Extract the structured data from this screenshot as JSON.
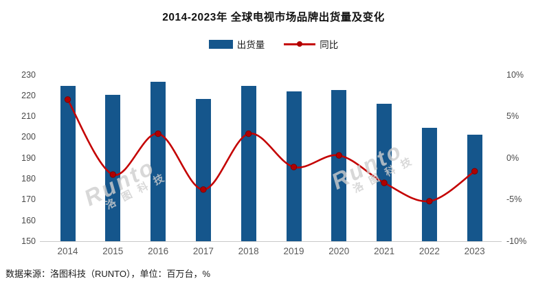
{
  "title": "2014-2023年 全球电视市场品牌出货量及变化",
  "legend": {
    "bar_label": "出货量",
    "line_label": "同比"
  },
  "source_note": "数据来源：洛图科技（RUNTO），单位：百万台，%",
  "watermark": {
    "brand": "Runto",
    "cn_chars": "洛图科技"
  },
  "colors": {
    "bar": "#15568C",
    "line": "#C40000",
    "marker_fill": "#B00000",
    "marker_stroke": "#7E0000",
    "axis_label": "#4A4A4A",
    "category_label": "#595959",
    "axis_line": "#C9C9C9",
    "watermark": "#CFCFCF"
  },
  "chart_data": {
    "type": "bar",
    "subtype": "combo-bar-line",
    "title": "2014-2023年 全球电视市场品牌出货量及变化",
    "categories": [
      "2014",
      "2015",
      "2016",
      "2017",
      "2018",
      "2019",
      "2020",
      "2021",
      "2022",
      "2023"
    ],
    "series": [
      {
        "name": "出货量",
        "type": "bar",
        "axis": "left",
        "unit": "百万台",
        "values": [
          224.4,
          220.4,
          226.7,
          218.3,
          224.5,
          222.0,
          222.7,
          215.9,
          204.5,
          201.2
        ]
      },
      {
        "name": "同比",
        "type": "line",
        "axis": "right",
        "unit": "%",
        "values": [
          7.0,
          -2.0,
          2.9,
          -3.8,
          2.9,
          -1.1,
          0.3,
          -3.0,
          -5.2,
          -1.6
        ]
      }
    ],
    "left_axis": {
      "min": 150,
      "max": 230,
      "ticks": [
        230,
        220,
        210,
        200,
        190,
        180,
        170,
        160,
        150
      ]
    },
    "right_axis": {
      "min": -10,
      "max": 10,
      "ticks": [
        10,
        5,
        0,
        -5,
        -10
      ],
      "tick_suffix": "%"
    },
    "legend_position": "top",
    "grid": "off"
  }
}
